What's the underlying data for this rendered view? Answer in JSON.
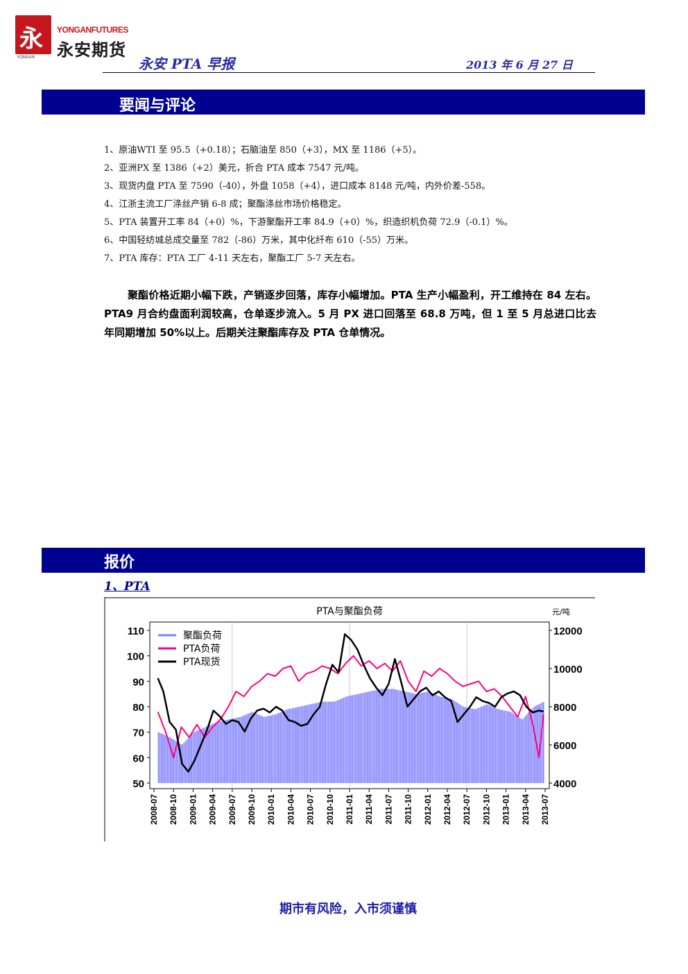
{
  "header": {
    "logo_en": "YONGANFUTURES",
    "logo_cn": "永安期货",
    "logo_small": "YONGAN",
    "title": "永安 PTA 早报",
    "date": "2013 年 6 月 27 日"
  },
  "sections": {
    "news_title": "要闻与评论",
    "price_title": "报价"
  },
  "news": [
    "1、原油WTI 至 95.5（+0.18）；石脑油至 850（+3），MX 至 1186（+5）。",
    "2、亚洲PX 至 1386（+2）美元，折合 PTA 成本 7547 元/吨。",
    "3、现货内盘 PTA 至 7590（-40），外盘 1058（+4），进口成本 8148 元/吨，内外价差-558。",
    "4、江浙主流工厂涤丝产销 6-8 成；聚酯涤丝市场价格稳定。",
    "5、PTA 装置开工率 84（+0）%，下游聚酯开工率 84.9（+0）%，织造织机负荷 72.9（-0.1）%。",
    "6、中国轻纺城总成交量至 782（-86）万米，其中化纤布 610（-55）万米。",
    "7、PTA 库存：PTA 工厂 4-11 天左右，聚酯工厂 5-7 天左右。"
  ],
  "commentary": "聚酯价格近期小幅下跌，产销逐步回落，库存小幅增加。PTA 生产小幅盈利，开工维持在 84 左右。PTA9 月合约盘面利润较高，仓单逐步流入。5 月 PX 进口回落至 68.8 万吨，但 1 至 5 月总进口比去年同期增加 50%以上。后期关注聚酯库存及 PTA 仓单情况。",
  "sub_heading": "1、PTA",
  "footer": "期市有风险，入市须谨慎",
  "colors": {
    "section_bar": "#000090",
    "polyester_load": "#8080ff",
    "pta_load": "#ff0080",
    "pta_spot": "#000000"
  },
  "chart_data": {
    "type": "line",
    "title": "PTA与聚酯负荷",
    "y_right_unit": "元/吨",
    "ylim_left": [
      50,
      110
    ],
    "yticks_left": [
      50,
      60,
      70,
      80,
      90,
      100,
      110
    ],
    "ylim_right": [
      4000,
      12000
    ],
    "yticks_right": [
      4000,
      6000,
      8000,
      10000,
      12000
    ],
    "x_ticks": [
      "2008-07",
      "2008-10",
      "2009-01",
      "2009-04",
      "2009-07",
      "2009-10",
      "2010-01",
      "2010-04",
      "2010-07",
      "2010-10",
      "2011-01",
      "2011-04",
      "2011-07",
      "2011-10",
      "2012-01",
      "2012-04",
      "2012-07",
      "2012-10",
      "2013-01",
      "2013-04",
      "2013-07"
    ],
    "legend_position": "top-left",
    "grid": "vertical-only",
    "series": [
      {
        "name": "聚酯负荷",
        "type": "bar",
        "axis": "left",
        "x": [
          2008.55,
          2008.7,
          2008.85,
          2009.0,
          2009.15,
          2009.3,
          2009.45,
          2009.6,
          2009.75,
          2009.9,
          2010.05,
          2010.2,
          2010.35,
          2010.5,
          2010.65,
          2010.8,
          2010.95,
          2011.1,
          2011.25,
          2011.4,
          2011.55,
          2011.7,
          2011.85,
          2012.0,
          2012.15,
          2012.3,
          2012.45,
          2012.6,
          2012.75,
          2012.9,
          2013.05,
          2013.2,
          2013.35,
          2013.48
        ],
        "values": [
          70,
          68,
          65,
          70,
          72,
          74,
          75,
          76,
          78,
          76,
          77,
          79,
          80,
          81,
          82,
          82,
          84,
          85,
          86,
          87,
          87,
          86,
          85,
          86,
          84,
          83,
          80,
          79,
          81,
          79,
          78,
          75,
          80,
          82
        ]
      },
      {
        "name": "PTA负荷",
        "type": "line",
        "axis": "left",
        "x": [
          2008.55,
          2008.65,
          2008.75,
          2008.85,
          2008.95,
          2009.05,
          2009.15,
          2009.25,
          2009.35,
          2009.45,
          2009.55,
          2009.65,
          2009.75,
          2009.85,
          2009.95,
          2010.05,
          2010.15,
          2010.25,
          2010.35,
          2010.45,
          2010.55,
          2010.65,
          2010.75,
          2010.85,
          2010.95,
          2011.05,
          2011.15,
          2011.25,
          2011.35,
          2011.45,
          2011.55,
          2011.65,
          2011.75,
          2011.85,
          2011.95,
          2012.05,
          2012.15,
          2012.25,
          2012.35,
          2012.45,
          2012.55,
          2012.65,
          2012.75,
          2012.85,
          2012.95,
          2013.05,
          2013.15,
          2013.25,
          2013.35,
          2013.42,
          2013.48
        ],
        "values": [
          78,
          70,
          60,
          72,
          68,
          73,
          68,
          72,
          75,
          80,
          86,
          84,
          88,
          90,
          93,
          92,
          95,
          96,
          90,
          93,
          94,
          96,
          95,
          93,
          97,
          100,
          96,
          98,
          95,
          97,
          94,
          98,
          90,
          86,
          94,
          92,
          95,
          93,
          90,
          88,
          89,
          90,
          86,
          87,
          84,
          80,
          76,
          84,
          72,
          60,
          77
        ]
      },
      {
        "name": "PTA现货",
        "type": "line",
        "axis": "right",
        "x": [
          2008.55,
          2008.62,
          2008.7,
          2008.78,
          2008.86,
          2008.94,
          2009.02,
          2009.1,
          2009.18,
          2009.26,
          2009.34,
          2009.42,
          2009.5,
          2009.58,
          2009.66,
          2009.74,
          2009.82,
          2009.9,
          2009.98,
          2010.06,
          2010.14,
          2010.22,
          2010.3,
          2010.38,
          2010.46,
          2010.54,
          2010.62,
          2010.7,
          2010.78,
          2010.86,
          2010.94,
          2011.02,
          2011.1,
          2011.18,
          2011.26,
          2011.34,
          2011.42,
          2011.5,
          2011.58,
          2011.66,
          2011.74,
          2011.82,
          2011.9,
          2011.98,
          2012.06,
          2012.14,
          2012.22,
          2012.3,
          2012.38,
          2012.46,
          2012.54,
          2012.62,
          2012.7,
          2012.78,
          2012.86,
          2012.94,
          2013.02,
          2013.1,
          2013.18,
          2013.26,
          2013.34,
          2013.42,
          2013.48
        ],
        "values": [
          9500,
          8800,
          7200,
          6800,
          5000,
          4600,
          5200,
          6000,
          6800,
          7800,
          7500,
          7100,
          7300,
          7200,
          6700,
          7400,
          7800,
          7900,
          7700,
          8000,
          7800,
          7300,
          7200,
          7000,
          7100,
          7600,
          8000,
          9200,
          10200,
          9800,
          11800,
          11500,
          11000,
          10200,
          9500,
          9000,
          8600,
          9200,
          10500,
          9300,
          8000,
          8400,
          8800,
          9000,
          8600,
          8800,
          8500,
          8300,
          7200,
          7600,
          8000,
          8500,
          8300,
          8200,
          8000,
          8500,
          8700,
          8800,
          8600,
          8000,
          7700,
          7800,
          7750
        ]
      }
    ]
  }
}
